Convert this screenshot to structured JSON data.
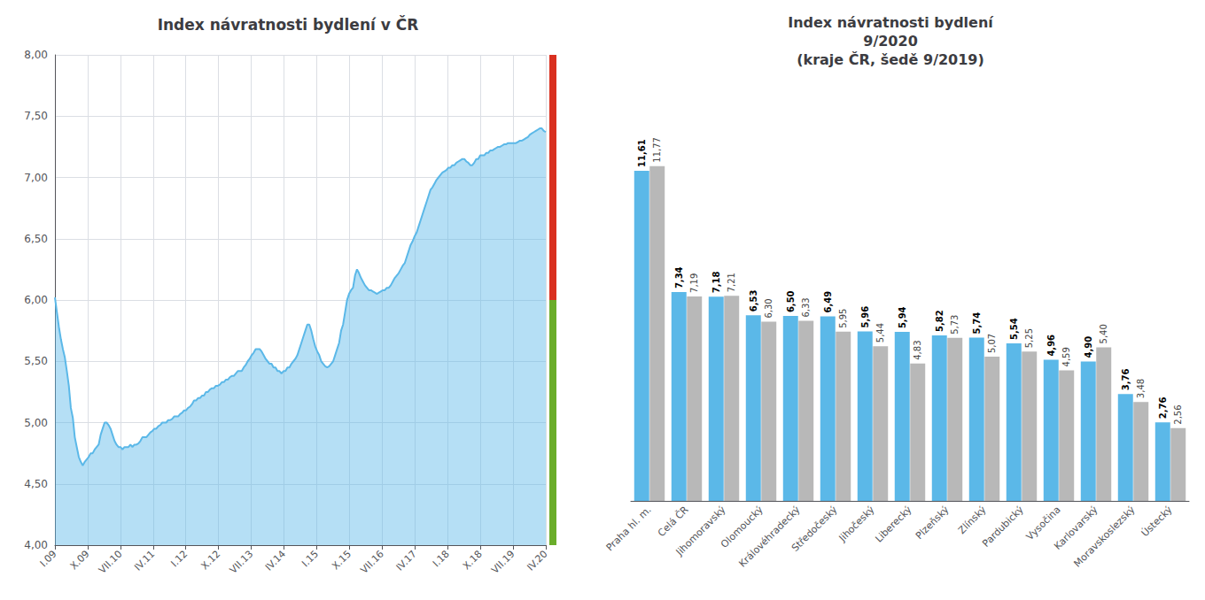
{
  "chart_data": [
    {
      "type": "area",
      "title": "Index návratnosti bydlení v ČR",
      "color": "#5BB8E8",
      "values": [
        6.02,
        5.9,
        5.78,
        5.68,
        5.6,
        5.53,
        5.42,
        5.3,
        5.12,
        5.04,
        4.88,
        4.8,
        4.72,
        4.68,
        4.65,
        4.68,
        4.7,
        4.72,
        4.75,
        4.75,
        4.78,
        4.8,
        4.82,
        4.9,
        4.95,
        5.0,
        5.0,
        4.98,
        4.95,
        4.9,
        4.85,
        4.82,
        4.8,
        4.8,
        4.78,
        4.8,
        4.8,
        4.8,
        4.82,
        4.8,
        4.82,
        4.82,
        4.83,
        4.85,
        4.88,
        4.88,
        4.88,
        4.9,
        4.92,
        4.93,
        4.95,
        4.95,
        4.97,
        4.98,
        5.0,
        5.0,
        5.0,
        5.02,
        5.02,
        5.03,
        5.05,
        5.05,
        5.05,
        5.07,
        5.08,
        5.1,
        5.1,
        5.12,
        5.13,
        5.15,
        5.18,
        5.18,
        5.2,
        5.2,
        5.22,
        5.22,
        5.25,
        5.25,
        5.27,
        5.28,
        5.28,
        5.3,
        5.3,
        5.31,
        5.33,
        5.33,
        5.35,
        5.35,
        5.37,
        5.38,
        5.38,
        5.4,
        5.42,
        5.42,
        5.42,
        5.45,
        5.47,
        5.5,
        5.52,
        5.55,
        5.57,
        5.6,
        5.6,
        5.6,
        5.58,
        5.55,
        5.52,
        5.5,
        5.48,
        5.48,
        5.45,
        5.45,
        5.42,
        5.42,
        5.4,
        5.42,
        5.42,
        5.45,
        5.45,
        5.48,
        5.5,
        5.52,
        5.55,
        5.6,
        5.65,
        5.7,
        5.75,
        5.8,
        5.8,
        5.75,
        5.68,
        5.62,
        5.58,
        5.55,
        5.5,
        5.48,
        5.46,
        5.45,
        5.46,
        5.48,
        5.5,
        5.55,
        5.6,
        5.65,
        5.75,
        5.8,
        5.9,
        6.0,
        6.05,
        6.08,
        6.1,
        6.2,
        6.25,
        6.22,
        6.18,
        6.15,
        6.12,
        6.1,
        6.08,
        6.08,
        6.07,
        6.06,
        6.05,
        6.06,
        6.07,
        6.08,
        6.08,
        6.1,
        6.1,
        6.12,
        6.15,
        6.18,
        6.2,
        6.22,
        6.25,
        6.28,
        6.3,
        6.35,
        6.4,
        6.45,
        6.48,
        6.52,
        6.55,
        6.6,
        6.65,
        6.7,
        6.75,
        6.8,
        6.85,
        6.9,
        6.92,
        6.95,
        6.98,
        7.0,
        7.02,
        7.04,
        7.05,
        7.06,
        7.08,
        7.08,
        7.1,
        7.1,
        7.12,
        7.13,
        7.14,
        7.15,
        7.15,
        7.13,
        7.12,
        7.1,
        7.1,
        7.12,
        7.15,
        7.15,
        7.18,
        7.18,
        7.18,
        7.2,
        7.2,
        7.22,
        7.22,
        7.23,
        7.24,
        7.25,
        7.25,
        7.26,
        7.27,
        7.27,
        7.28,
        7.28,
        7.28,
        7.28,
        7.28,
        7.29,
        7.3,
        7.3,
        7.31,
        7.32,
        7.33,
        7.35,
        7.36,
        7.37,
        7.38,
        7.39,
        7.4,
        7.4,
        7.38,
        7.37
      ],
      "xlim": [
        0,
        247
      ],
      "xticks": [
        {
          "value": 0,
          "label": "I.09"
        },
        {
          "value": 16.466667,
          "label": "X.09"
        },
        {
          "value": 32.933333,
          "label": "VII.10"
        },
        {
          "value": 49.4,
          "label": "IV.11"
        },
        {
          "value": 65.866667,
          "label": "I.12"
        },
        {
          "value": 82.333333,
          "label": "X.12"
        },
        {
          "value": 98.8,
          "label": "VII.13"
        },
        {
          "value": 115.266667,
          "label": "IV.14"
        },
        {
          "value": 131.733333,
          "label": "I.15"
        },
        {
          "value": 148.2,
          "label": "X.15"
        },
        {
          "value": 164.666667,
          "label": "VII.16"
        },
        {
          "value": 181.133333,
          "label": "IV.17"
        },
        {
          "value": 197.6,
          "label": "I.18"
        },
        {
          "value": 214.066667,
          "label": "X.18"
        },
        {
          "value": 230.533333,
          "label": "VII.19"
        },
        {
          "value": 247,
          "label": "IV.20"
        }
      ],
      "ylim": [
        4.0,
        8.0
      ],
      "yticks": [
        {
          "value": 4.0,
          "label": "4,00"
        },
        {
          "value": 4.5,
          "label": "4,50"
        },
        {
          "value": 5.0,
          "label": "5,00"
        },
        {
          "value": 5.5,
          "label": "5,50"
        },
        {
          "value": 6.0,
          "label": "6,00"
        },
        {
          "value": 6.5,
          "label": "6,50"
        },
        {
          "value": 7.0,
          "label": "7,00"
        },
        {
          "value": 7.5,
          "label": "7,50"
        },
        {
          "value": 8.0,
          "label": "8,00"
        }
      ],
      "grid": true,
      "bands": [
        {
          "from": 6.0,
          "to": 8.0,
          "color": "#D93020"
        },
        {
          "from": 4.0,
          "to": 6.0,
          "color": "#6AAD2A"
        }
      ]
    },
    {
      "type": "bar",
      "title": "Index návratnosti bydlení\n9/2020\n(kraje ČR, šedě 9/2019)",
      "categories": [
        "Praha hl. m.",
        "Celá ČR",
        "Jihomoravský",
        "Olomoucký",
        "Královéhradecký",
        "Středočeský",
        "Jihočeský",
        "Liberecký",
        "Plzeňský",
        "Zlínský",
        "Pardubický",
        "Vysočina",
        "Karlovarský",
        "Moravskoslezský",
        "Ústecký"
      ],
      "series": [
        {
          "color": "#5BB8E8",
          "values": [
            11.61,
            7.34,
            7.18,
            6.53,
            6.5,
            6.49,
            5.96,
            5.94,
            5.82,
            5.74,
            5.54,
            4.96,
            4.9,
            3.76,
            2.76
          ],
          "value_labels": [
            "11,61",
            "7,34",
            "7,18",
            "6,53",
            "6,50",
            "6,49",
            "5,96",
            "5,94",
            "5,82",
            "5,74",
            "5,54",
            "4,96",
            "4,90",
            "3,76",
            "2,76"
          ]
        },
        {
          "color": "#B8B8B8",
          "values": [
            11.77,
            7.19,
            7.21,
            6.3,
            6.33,
            5.95,
            5.44,
            4.83,
            5.73,
            5.07,
            5.25,
            4.59,
            5.4,
            3.48,
            2.56
          ],
          "value_labels": [
            "11,77",
            "7,19",
            "7,21",
            "6,30",
            "6,33",
            "5,95",
            "5,44",
            "4,83",
            "5,73",
            "5,07",
            "5,25",
            "4,59",
            "5,40",
            "3,48",
            "2,56"
          ]
        }
      ],
      "ylim": [
        0,
        14.5
      ],
      "tick_labels": "x",
      "data_labels": true
    }
  ]
}
